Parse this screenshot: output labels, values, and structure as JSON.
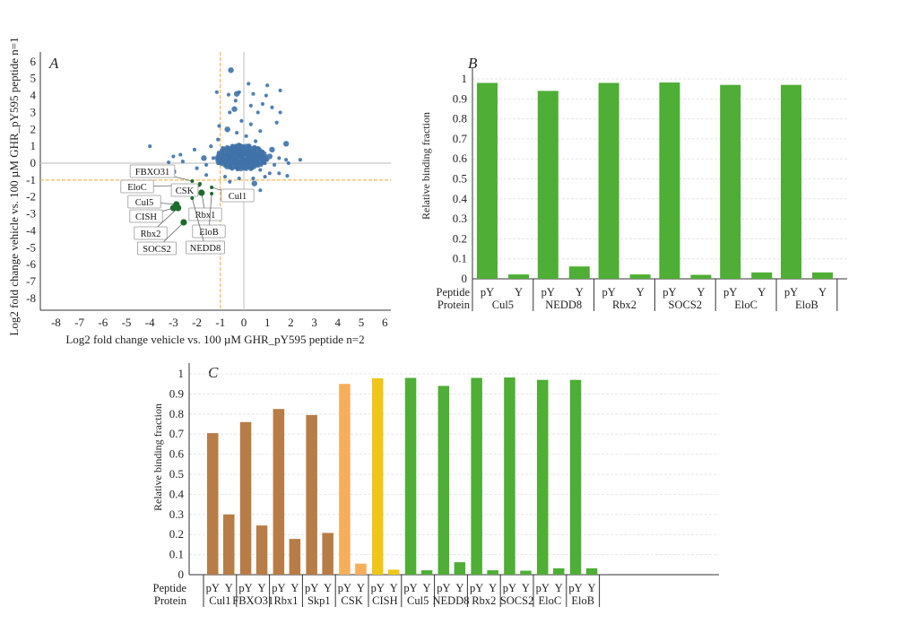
{
  "chart_data": [
    {
      "panel": "A",
      "type": "scatter",
      "xlabel": "Log2 fold change vehicle vs. 100 µM GHR_pY595 peptide n=2",
      "ylabel": "Log2 fold change vehicle vs. 100 µM GHR_pY595 peptide n=1",
      "xlim": [
        -8.6,
        6.3
      ],
      "ylim": [
        -8.7,
        6.6
      ],
      "xticks": [
        -8,
        -7,
        -6,
        -5,
        -4,
        -3,
        -2,
        -1,
        0,
        1,
        2,
        3,
        4,
        5,
        6
      ],
      "yticks": [
        6,
        5,
        4,
        3,
        2,
        1,
        0,
        -1,
        -2,
        -3,
        -4,
        -5,
        -6,
        -7,
        -8
      ],
      "reference_lines": {
        "x": [
          0
        ],
        "y": [
          0
        ]
      },
      "threshold_lines": {
        "x": [
          -1
        ],
        "y": [
          -1
        ],
        "color": "#f0a830"
      },
      "colors": {
        "background_points": "#3f72a8",
        "highlighted_points": "#1d6b2b"
      },
      "points": [
        [
          -0.55,
          5.5
        ],
        [
          0.2,
          4.7
        ],
        [
          1.0,
          4.6
        ],
        [
          1.55,
          4.3
        ],
        [
          -1.15,
          4.2
        ],
        [
          -0.65,
          4.05
        ],
        [
          -0.2,
          4.2
        ],
        [
          -0.3,
          4.1
        ],
        [
          0.4,
          4.1
        ],
        [
          0.95,
          4.0
        ],
        [
          -0.35,
          3.7
        ],
        [
          0.8,
          3.5
        ],
        [
          0.3,
          3.4
        ],
        [
          1.2,
          3.3
        ],
        [
          -0.4,
          3.2
        ],
        [
          -0.6,
          3.0
        ],
        [
          1.55,
          3.0
        ],
        [
          0.6,
          3.0
        ],
        [
          -0.1,
          2.5
        ],
        [
          0.3,
          2.3
        ],
        [
          1.4,
          2.4
        ],
        [
          -0.7,
          2.0
        ],
        [
          0.7,
          1.9
        ],
        [
          -1.05,
          2.2
        ],
        [
          -0.3,
          1.8
        ],
        [
          0.1,
          1.6
        ],
        [
          -1.1,
          1.4
        ],
        [
          0.5,
          1.3
        ],
        [
          1.8,
          1.15
        ],
        [
          -4.0,
          1.0
        ],
        [
          -0.9,
          0.9
        ],
        [
          -0.5,
          1.0
        ],
        [
          -0.2,
          1.1
        ],
        [
          0.2,
          1.05
        ],
        [
          0.6,
          0.9
        ],
        [
          1.2,
          0.8
        ],
        [
          -1.4,
          1.0
        ],
        [
          -2.1,
          0.8
        ],
        [
          -2.7,
          0.5
        ],
        [
          -3.0,
          0.4
        ],
        [
          -3.2,
          0.05
        ],
        [
          -2.6,
          0.1
        ],
        [
          -1.7,
          0.3
        ],
        [
          -1.3,
          0.3
        ],
        [
          -0.8,
          0.5
        ],
        [
          -0.4,
          0.6
        ],
        [
          0,
          0.5
        ],
        [
          0.3,
          0.6
        ],
        [
          0.7,
          0.4
        ],
        [
          1.1,
          0.4
        ],
        [
          1.5,
          0.3
        ],
        [
          1.8,
          0.2
        ],
        [
          2.4,
          0.2
        ],
        [
          1.9,
          0
        ],
        [
          -0.7,
          0.2
        ],
        [
          -0.3,
          0.2
        ],
        [
          0.1,
          0.1
        ],
        [
          0.5,
          0.1
        ],
        [
          0.9,
          0.0
        ],
        [
          1.3,
          -0.1
        ],
        [
          -1.1,
          0.0
        ],
        [
          -0.6,
          -0.2
        ],
        [
          -0.2,
          -0.3
        ],
        [
          0.3,
          -0.3
        ],
        [
          0.7,
          -0.4
        ],
        [
          1.1,
          -0.6
        ],
        [
          1.5,
          -0.6
        ],
        [
          1.85,
          -0.75
        ],
        [
          -1.6,
          -0.1
        ],
        [
          -2.0,
          -0.3
        ],
        [
          -3.0,
          -0.5
        ],
        [
          -1.6,
          -0.7
        ],
        [
          -0.8,
          -0.8
        ],
        [
          -0.2,
          -0.9
        ],
        [
          0.4,
          -0.9
        ],
        [
          0.9,
          -0.8
        ],
        [
          -0.6,
          -1.1
        ],
        [
          0.45,
          -1.2
        ],
        [
          0.7,
          -1.6
        ],
        [
          -0.35,
          0.9
        ],
        [
          0.15,
          0.8
        ],
        [
          -0.55,
          0.7
        ],
        [
          0.45,
          0.5
        ],
        [
          -0.15,
          0.4
        ],
        [
          0.25,
          0.35
        ],
        [
          -0.45,
          0.3
        ],
        [
          0.8,
          0.7
        ],
        [
          -0.9,
          0.1
        ],
        [
          1.0,
          0.2
        ],
        [
          -0.25,
          0.0
        ]
      ],
      "highlighted": [
        {
          "label": "FBXO31",
          "x": -2.2,
          "y": -1.06
        },
        {
          "label": "EloC",
          "x": -1.9,
          "y": -1.3
        },
        {
          "label": "CSK",
          "x": -1.87,
          "y": -1.22
        },
        {
          "label": "Cul1",
          "x": -1.37,
          "y": -1.43
        },
        {
          "label": "Cul5",
          "x": -2.87,
          "y": -2.44
        },
        {
          "label": "CISH",
          "x": -3.0,
          "y": -2.65
        },
        {
          "label": "Rbx1",
          "x": -1.8,
          "y": -1.75
        },
        {
          "label": "Rbx2",
          "x": -2.8,
          "y": -2.65
        },
        {
          "label": "EloB",
          "x": -1.37,
          "y": -1.8
        },
        {
          "label": "SOCS2",
          "x": -2.56,
          "y": -3.5
        },
        {
          "label": "NEDD8",
          "x": -2.2,
          "y": -2.07
        }
      ]
    },
    {
      "panel": "B",
      "type": "bar",
      "ylabel": "Relative binding fraction",
      "ylim": [
        0,
        1
      ],
      "yticks": [
        0,
        0.1,
        0.2,
        0.3,
        0.4,
        0.5,
        0.6,
        0.7,
        0.8,
        0.9,
        1
      ],
      "row_labels": [
        "Peptide",
        "Protein"
      ],
      "peptides": [
        "pY",
        "Y"
      ],
      "grid": true,
      "groups": [
        {
          "protein": "Cul5",
          "values": [
            0.98,
            0.022
          ],
          "color": "#4fae35"
        },
        {
          "protein": "NEDD8",
          "values": [
            0.94,
            0.062
          ],
          "color": "#4fae35"
        },
        {
          "protein": "Rbx2",
          "values": [
            0.98,
            0.022
          ],
          "color": "#4fae35"
        },
        {
          "protein": "SOCS2",
          "values": [
            0.982,
            0.02
          ],
          "color": "#4fae35"
        },
        {
          "protein": "EloC",
          "values": [
            0.97,
            0.032
          ],
          "color": "#4fae35"
        },
        {
          "protein": "EloB",
          "values": [
            0.97,
            0.032
          ],
          "color": "#4fae35"
        }
      ]
    },
    {
      "panel": "C",
      "type": "bar",
      "ylabel": "Relative binding fraction",
      "ylim": [
        0,
        1
      ],
      "yticks": [
        0,
        0.1,
        0.2,
        0.3,
        0.4,
        0.5,
        0.6,
        0.7,
        0.8,
        0.9,
        1
      ],
      "row_labels": [
        "Peptide",
        "Protein"
      ],
      "peptides": [
        "pY",
        "Y"
      ],
      "grid": true,
      "groups": [
        {
          "protein": "Cul1",
          "values": [
            0.705,
            0.3
          ],
          "color": "#b87c46"
        },
        {
          "protein": "FBXO31",
          "values": [
            0.76,
            0.245
          ],
          "color": "#b87c46"
        },
        {
          "protein": "Rbx1",
          "values": [
            0.825,
            0.178
          ],
          "color": "#b87c46"
        },
        {
          "protein": "Skp1",
          "values": [
            0.795,
            0.208
          ],
          "color": "#b87c46"
        },
        {
          "protein": "CSK",
          "values": [
            0.95,
            0.055
          ],
          "color": "#f6ae5b"
        },
        {
          "protein": "CISH",
          "values": [
            0.978,
            0.025
          ],
          "color": "#efc619"
        },
        {
          "protein": "Cul5",
          "values": [
            0.98,
            0.022
          ],
          "color": "#4fae35"
        },
        {
          "protein": "NEDD8",
          "values": [
            0.94,
            0.062
          ],
          "color": "#4fae35"
        },
        {
          "protein": "Rbx2",
          "values": [
            0.98,
            0.022
          ],
          "color": "#4fae35"
        },
        {
          "protein": "SOCS2",
          "values": [
            0.982,
            0.02
          ],
          "color": "#4fae35"
        },
        {
          "protein": "EloC",
          "values": [
            0.97,
            0.032
          ],
          "color": "#4fae35"
        },
        {
          "protein": "EloB",
          "values": [
            0.97,
            0.032
          ],
          "color": "#4fae35"
        }
      ]
    }
  ]
}
